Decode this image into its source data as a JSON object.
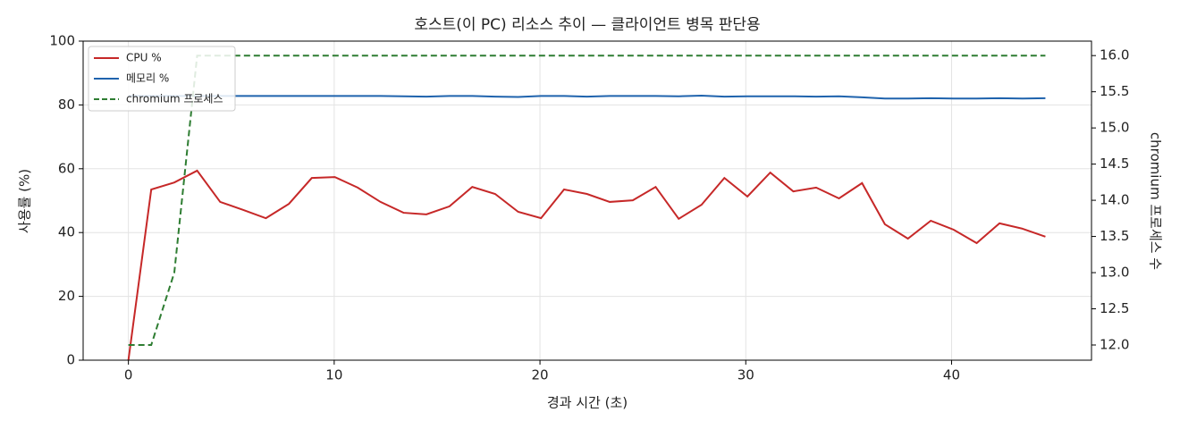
{
  "chart_data": {
    "type": "line",
    "title": "호스트(이 PC) 리소스 추이 — 클라이언트 병목 판단용",
    "x_label": "경과 시간 (초)",
    "y_label": "사용률 (%)",
    "y2_label": "chromium 프로세스 수",
    "x": [
      0,
      1.11,
      2.23,
      3.34,
      4.46,
      5.57,
      6.68,
      7.8,
      8.91,
      10.03,
      11.14,
      12.25,
      13.37,
      14.48,
      15.6,
      16.71,
      17.82,
      18.94,
      20.05,
      21.17,
      22.28,
      23.39,
      24.51,
      25.62,
      26.74,
      27.85,
      28.96,
      30.08,
      31.19,
      32.31,
      33.42,
      34.53,
      35.65,
      36.76,
      37.88,
      38.99,
      40.1,
      41.22,
      42.33,
      43.45,
      44.56
    ],
    "series": [
      {
        "name": "CPU %",
        "color": "#c62828",
        "linestyle": "solid",
        "axis": "y",
        "values": [
          0,
          53.5,
          55.7,
          59.4,
          49.6,
          47.1,
          44.5,
          49.0,
          57.1,
          57.4,
          54.1,
          49.6,
          46.2,
          45.7,
          48.2,
          54.3,
          52.1,
          46.5,
          44.5,
          53.5,
          52.1,
          49.6,
          50.1,
          54.3,
          44.3,
          48.7,
          57.1,
          51.3,
          58.8,
          52.9,
          54.1,
          50.7,
          55.5,
          42.6,
          38.1,
          43.7,
          40.9,
          36.7,
          42.9,
          41.2,
          38.7
        ]
      },
      {
        "name": "메모리 %",
        "color": "#1f63ad",
        "linestyle": "solid",
        "axis": "y",
        "values": [
          82.8,
          82.8,
          82.8,
          82.8,
          82.8,
          82.8,
          82.8,
          82.8,
          82.8,
          82.8,
          82.8,
          82.8,
          82.7,
          82.6,
          82.8,
          82.8,
          82.6,
          82.5,
          82.8,
          82.8,
          82.6,
          82.8,
          82.8,
          82.8,
          82.7,
          82.9,
          82.6,
          82.7,
          82.7,
          82.7,
          82.6,
          82.7,
          82.4,
          82.0,
          82.0,
          82.1,
          82.0,
          82.0,
          82.1,
          82.0,
          82.1
        ]
      },
      {
        "name": "chromium 프로세스",
        "color": "#2e7d32",
        "linestyle": "dashed",
        "axis": "y2",
        "values": [
          12,
          12,
          13,
          16,
          16,
          16,
          16,
          16,
          16,
          16,
          16,
          16,
          16,
          16,
          16,
          16,
          16,
          16,
          16,
          16,
          16,
          16,
          16,
          16,
          16,
          16,
          16,
          16,
          16,
          16,
          16,
          16,
          16,
          16,
          16,
          16,
          16,
          16,
          16,
          16,
          16
        ]
      }
    ],
    "xlim": [
      -2.2,
      46.8
    ],
    "xticks": [
      0,
      10,
      20,
      30,
      40
    ],
    "ylim": [
      0,
      100
    ],
    "yticks": [
      0,
      20,
      40,
      60,
      80,
      100
    ],
    "y2lim": [
      11.79,
      16.2
    ],
    "y2ticks": [
      {
        "value": 12,
        "label": "12.0"
      },
      {
        "value": 12.5,
        "label": "12.5"
      },
      {
        "value": 13,
        "label": "13.0"
      },
      {
        "value": 13.5,
        "label": "13.5"
      },
      {
        "value": 14,
        "label": "14.0"
      },
      {
        "value": 14.5,
        "label": "14.5"
      },
      {
        "value": 15,
        "label": "15.0"
      },
      {
        "value": 15.5,
        "label": "15.5"
      },
      {
        "value": 16,
        "label": "16.0"
      }
    ],
    "grid": true,
    "legend": "upper-left"
  }
}
